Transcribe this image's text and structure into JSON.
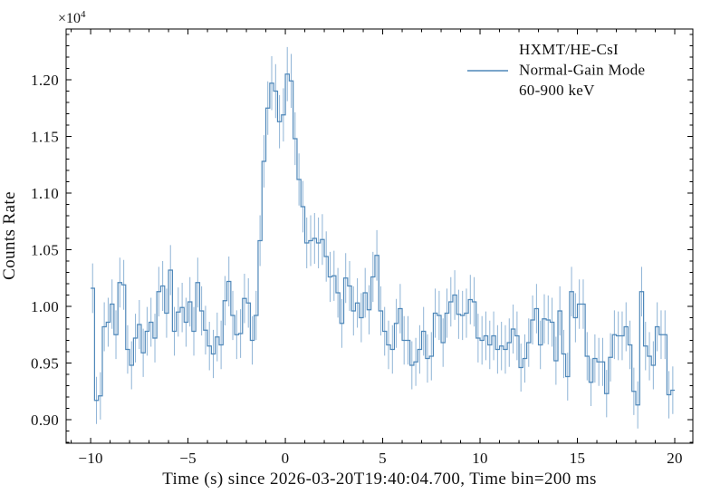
{
  "figure": {
    "background": "#ffffff",
    "axes_color": "#000000",
    "text_color": "#111111"
  },
  "chart_data": {
    "type": "line",
    "subtype": "step-histogram-with-errorbars",
    "title": "",
    "xlabel": "Time (s) since 2026-03-20T19:40:04.700, Time bin=200 ms",
    "ylabel": "Counts Rate",
    "offset_base": "×10",
    "offset_exp": "4",
    "unit_scale": 10000,
    "legend": {
      "position": "upper right",
      "frame": false,
      "lines": [
        "HXMT/HE-CsI",
        "Normal-Gain Mode",
        "60-900 keV"
      ]
    },
    "line_color": "#4e87b9",
    "errorbar_color": "#8fb4d6",
    "grid": false,
    "xlim": [
      -11.26,
      20.93
    ],
    "ylim": [
      0.8792,
      1.2448
    ],
    "x_major_ticks": [
      -10,
      -5,
      0,
      5,
      10,
      15,
      20
    ],
    "x_tick_labels": [
      "−10",
      "−5",
      "0",
      "5",
      "10",
      "15",
      "20"
    ],
    "x_minor_step": 1,
    "y_major_ticks": [
      0.9,
      0.95,
      1.0,
      1.05,
      1.1,
      1.15,
      1.2
    ],
    "y_tick_labels": [
      "0.90",
      "0.95",
      "1.00",
      "1.05",
      "1.10",
      "1.15",
      "1.20"
    ],
    "y_minor_step": 0.01,
    "t_start": -10.0,
    "bin_width": 0.2,
    "values_unit": "1e4 counts/s",
    "values": [
      1.016,
      0.917,
      0.921,
      0.982,
      0.986,
      1.002,
      0.975,
      1.021,
      1.019,
      0.962,
      0.948,
      0.972,
      0.984,
      0.959,
      0.978,
      0.986,
      0.972,
      1.013,
      1.018,
      0.994,
      1.032,
      0.978,
      0.995,
      0.999,
      0.986,
      1.004,
      0.978,
      1.021,
      0.996,
      0.979,
      0.965,
      0.958,
      0.973,
      0.966,
      1.005,
      1.022,
      0.992,
      0.975,
      0.976,
      1.007,
      1.003,
      0.97,
      0.992,
      1.058,
      1.128,
      1.175,
      1.197,
      1.19,
      1.163,
      1.169,
      1.205,
      1.199,
      1.148,
      1.112,
      1.088,
      1.056,
      1.058,
      1.06,
      1.056,
      1.059,
      1.044,
      1.026,
      1.027,
      1.012,
      0.985,
      1.025,
      1.018,
      0.996,
      1.003,
      0.99,
      1.012,
      0.997,
      1.026,
      1.045,
      0.996,
      0.978,
      0.966,
      0.962,
      0.985,
      0.998,
      0.97,
      0.97,
      0.948,
      0.951,
      0.962,
      0.978,
      0.954,
      0.956,
      0.994,
      0.992,
      0.968,
      0.994,
      1.004,
      1.01,
      0.993,
      0.992,
      0.994,
      1.006,
      1.004,
      0.972,
      0.97,
      0.974,
      0.966,
      0.974,
      0.962,
      0.965,
      0.962,
      0.968,
      0.98,
      0.974,
      0.946,
      0.954,
      0.968,
      0.988,
      0.998,
      0.966,
      0.989,
      0.988,
      0.986,
      0.952,
      0.996,
      0.958,
      0.938,
      1.013,
      0.99,
      1.002,
      1.002,
      0.956,
      0.933,
      0.954,
      0.951,
      0.951,
      0.923,
      0.955,
      0.975,
      0.974,
      0.974,
      0.982,
      0.966,
      0.925,
      0.913,
      1.013,
      0.965,
      0.956,
      0.948,
      0.982,
      0.975,
      0.975,
      0.922,
      0.926
    ],
    "error_model": {
      "base": 0.0215,
      "ref": 0.975,
      "note": "err = base*sqrt(v/ref), 1-sigma"
    }
  }
}
